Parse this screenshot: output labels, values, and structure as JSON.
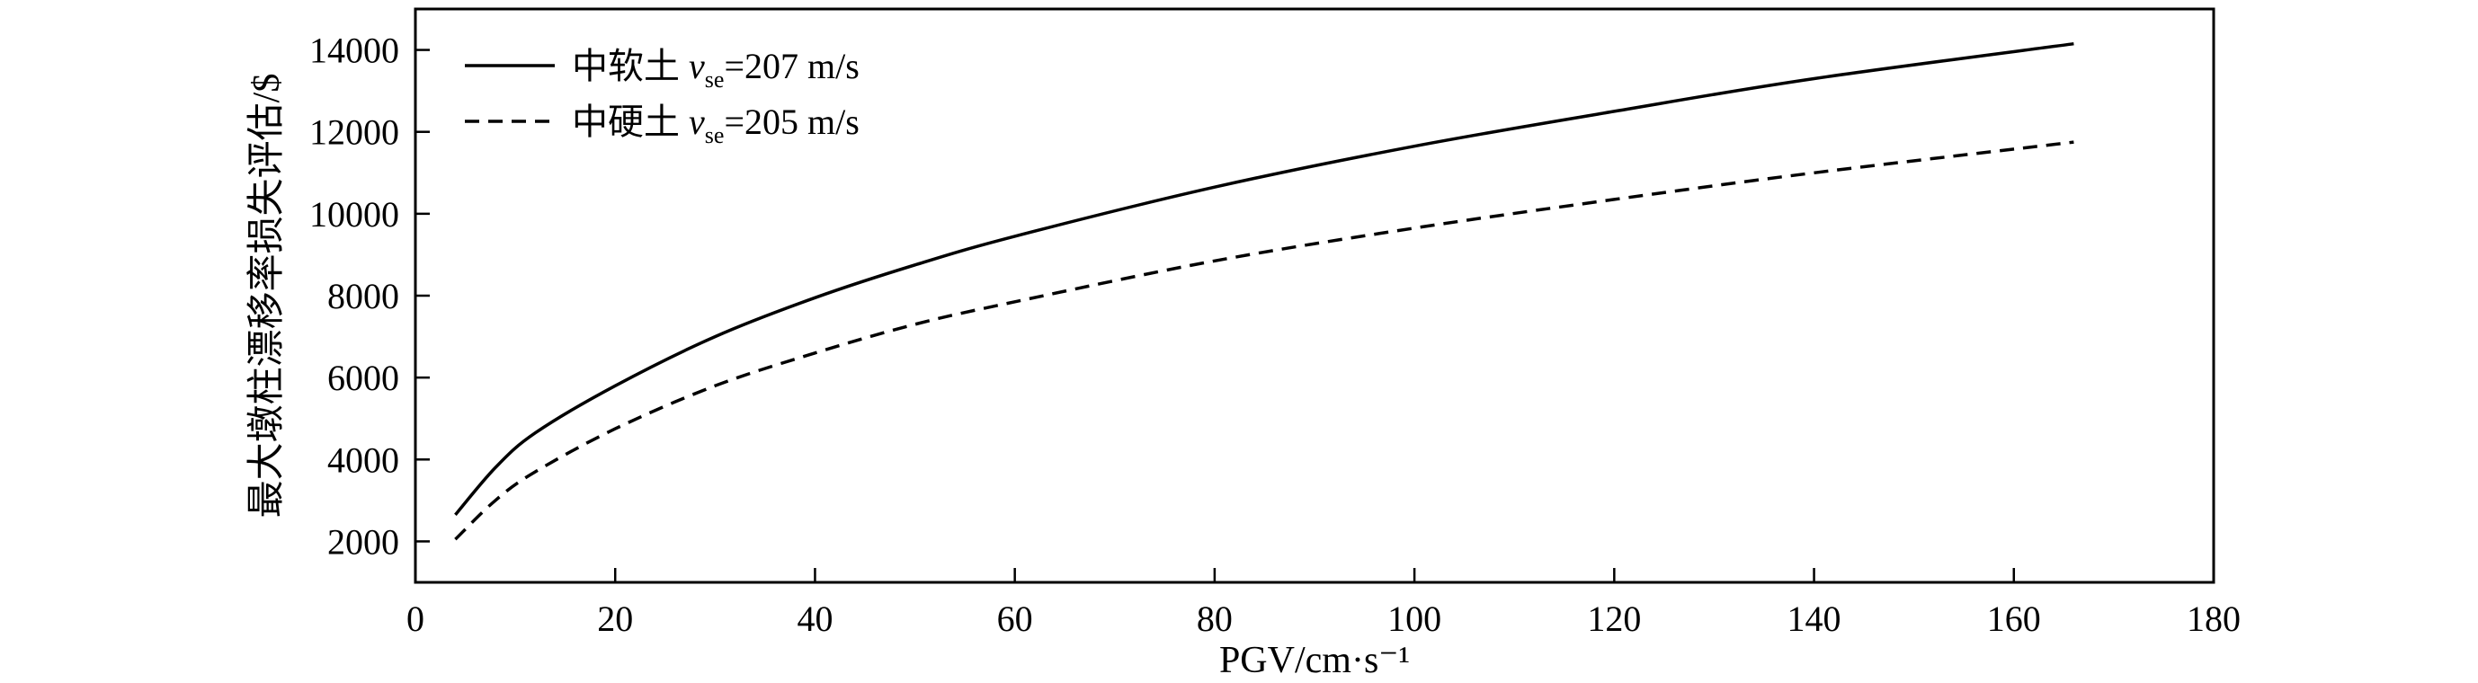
{
  "chart_data": {
    "type": "line",
    "xlabel": "PGV/cm·s⁻¹",
    "ylabel": "最大墩柱漂移率损失评估/$",
    "xlim": [
      0,
      180
    ],
    "ylim": [
      1000,
      15000
    ],
    "x_ticks": [
      0,
      20,
      40,
      60,
      80,
      100,
      120,
      140,
      160,
      180
    ],
    "y_ticks": [
      2000,
      4000,
      6000,
      8000,
      10000,
      12000,
      14000
    ],
    "grid": false,
    "legend_position": "top-left",
    "series": [
      {
        "name_prefix": "中软土 ",
        "name_var": "v",
        "name_sub": "se",
        "name_suffix": "=207 m/s",
        "line_style": "solid",
        "color": "#000000",
        "x": [
          4,
          8,
          12,
          20,
          30,
          40,
          50,
          60,
          80,
          100,
          120,
          140,
          166
        ],
        "y": [
          2650,
          3800,
          4650,
          5800,
          7000,
          7950,
          8750,
          9450,
          10650,
          11650,
          12500,
          13300,
          14150
        ]
      },
      {
        "name_prefix": "中硬土 ",
        "name_var": "v",
        "name_sub": "se",
        "name_suffix": "=205 m/s",
        "line_style": "dashed",
        "color": "#000000",
        "x": [
          4,
          8,
          12,
          20,
          30,
          40,
          50,
          60,
          80,
          100,
          120,
          140,
          166
        ],
        "y": [
          2050,
          3000,
          3700,
          4750,
          5800,
          6600,
          7300,
          7850,
          8850,
          9650,
          10350,
          11000,
          11750
        ]
      }
    ]
  }
}
